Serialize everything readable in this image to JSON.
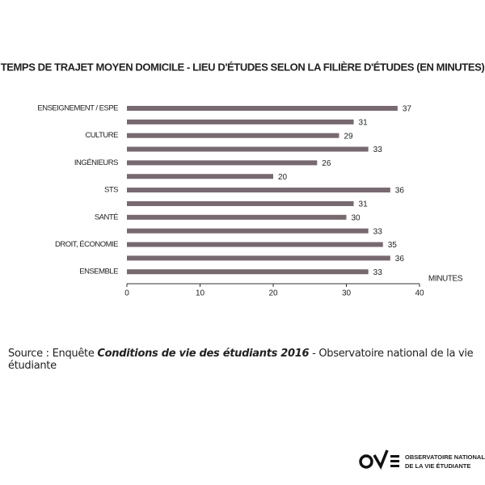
{
  "chart_data": {
    "type": "bar",
    "orientation": "horizontal",
    "title": "TEMPS DE TRAJET MOYEN DOMICILE - LIEU D'ÉTUDES SELON LA FILIÈRE D'ÉTUDES  (EN MINUTES)",
    "x_label": "MINUTES",
    "categories": [
      "ENSEIGNEMENT / ESPE",
      null,
      "CULTURE",
      null,
      "INGÉNIEURS",
      null,
      "STS",
      null,
      "SANTÉ",
      null,
      "DROIT, ÉCONOMIE",
      null,
      "ENSEMBLE"
    ],
    "values": [
      37,
      31,
      29,
      33,
      26,
      20,
      36,
      31,
      30,
      33,
      35,
      36,
      33
    ],
    "color": "#786870",
    "xlim": [
      0,
      40
    ],
    "xticks": [
      0,
      10,
      20,
      30,
      40
    ]
  },
  "source": {
    "label": "Source :",
    "prefix": "Enquête",
    "emphasis": "Conditions de vie des étudiants 2016",
    "suffix": "- Observatoire national de la vie étudiante"
  },
  "logo": {
    "line1": "OBSERVATOIRE NATIONAL",
    "line2": "DE LA VIE ÉTUDIANTE"
  }
}
